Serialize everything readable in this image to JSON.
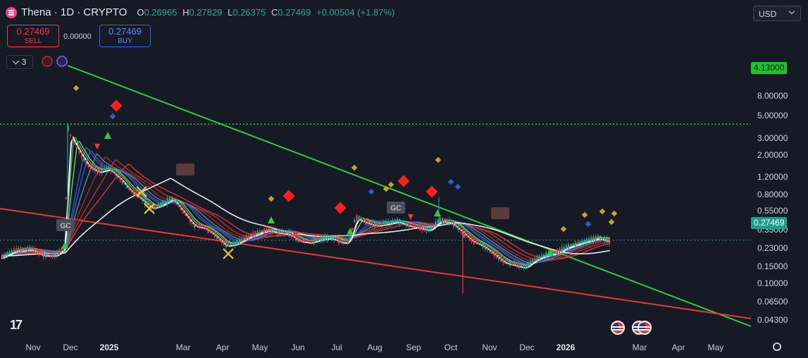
{
  "header": {
    "symbol": "Thena · 1D · CRYPTO",
    "open_label": "O",
    "open_value": "0.26965",
    "high_label": "H",
    "high_value": "0.27829",
    "low_label": "L",
    "low_value": "0.26375",
    "close_label": "C",
    "close_value": "0.27469",
    "change": "+0.00504 (+1.87%)"
  },
  "trade": {
    "sell_price": "0.27469",
    "sell_label": "SELL",
    "spread": "0.00000",
    "buy_price": "0.27469",
    "buy_label": "BUY"
  },
  "indicators": {
    "count": "3"
  },
  "currency": "USD",
  "y_axis_ticks": [
    "8.00000",
    "5.00000",
    "3.00000",
    "2.00000",
    "1.20000",
    "0.80000",
    "0.55000",
    "0.35000",
    "0.23000",
    "0.15000",
    "0.10000",
    "0.06500",
    "0.04300"
  ],
  "price_tags": {
    "green_line": "4.13000",
    "last_price": "0.27469"
  },
  "x_axis_ticks": [
    "Nov",
    "Dec",
    "2025",
    "Mar",
    "Apr",
    "May",
    "Jun",
    "Jul",
    "Aug",
    "Sep",
    "Oct",
    "Nov",
    "Dec",
    "2026",
    "Mar",
    "Apr",
    "May"
  ],
  "markers": {
    "golden_cross": "GC"
  },
  "colors": {
    "up": "#26a69a",
    "down": "#f23645",
    "green_trend": "#2ecc40",
    "red_trend": "#e53935",
    "background": "#161a25"
  },
  "chart_data": {
    "type": "candlestick",
    "y_scale": "log",
    "ylim": [
      0.04,
      9
    ],
    "x": [
      "Nov",
      "Dec",
      "2025",
      "Mar",
      "Apr",
      "May",
      "Jun",
      "Jul",
      "Aug",
      "Sep",
      "Oct",
      "Nov",
      "Dec",
      "2026"
    ],
    "approx_close": [
      0.2,
      0.35,
      1.5,
      0.6,
      0.4,
      0.35,
      0.32,
      0.3,
      0.45,
      0.4,
      0.4,
      0.22,
      0.18,
      0.25
    ],
    "last_close": 0.27469
  }
}
